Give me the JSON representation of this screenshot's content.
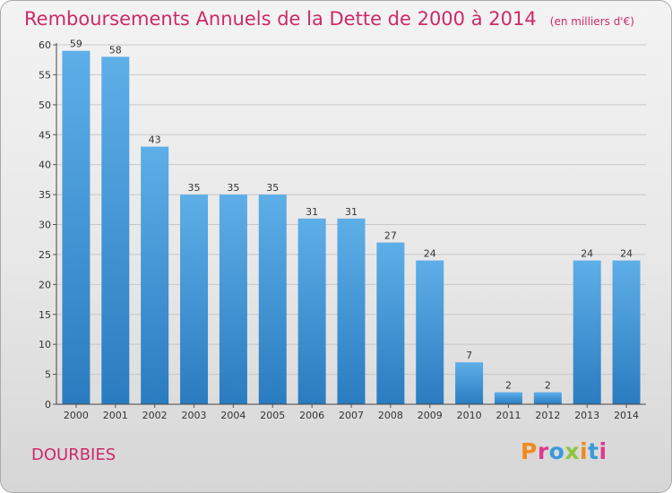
{
  "title": "Remboursements Annuels de la Dette de 2000 à 2014",
  "unit": "(en milliers d'€)",
  "commune": "DOURBIES",
  "logo": "Proxiti",
  "colors": {
    "title": "#cc2a68",
    "bar_light": "#5eaee8",
    "bar_dark": "#2a7cc0",
    "grid": "#c8c8c8",
    "logo": [
      "#f08a1c",
      "#e03a8c",
      "#3a9ad9",
      "#8cc63f",
      "#f08a1c",
      "#3a9ad9",
      "#e03a8c"
    ]
  },
  "chart_data": {
    "type": "bar",
    "title": "Remboursements Annuels de la Dette de 2000 à 2014",
    "subtitle": "(en milliers d'€)",
    "categories": [
      "2000",
      "2001",
      "2002",
      "2003",
      "2004",
      "2005",
      "2006",
      "2007",
      "2008",
      "2009",
      "2010",
      "2011",
      "2012",
      "2013",
      "2014"
    ],
    "values": [
      59,
      58,
      43,
      35,
      35,
      35,
      31,
      31,
      27,
      24,
      7,
      2,
      2,
      24,
      24
    ],
    "ylim": [
      0,
      60
    ],
    "yticks": [
      0,
      5,
      10,
      15,
      20,
      25,
      30,
      35,
      40,
      45,
      50,
      55,
      60
    ],
    "grid": true,
    "xlabel": "",
    "ylabel": ""
  }
}
